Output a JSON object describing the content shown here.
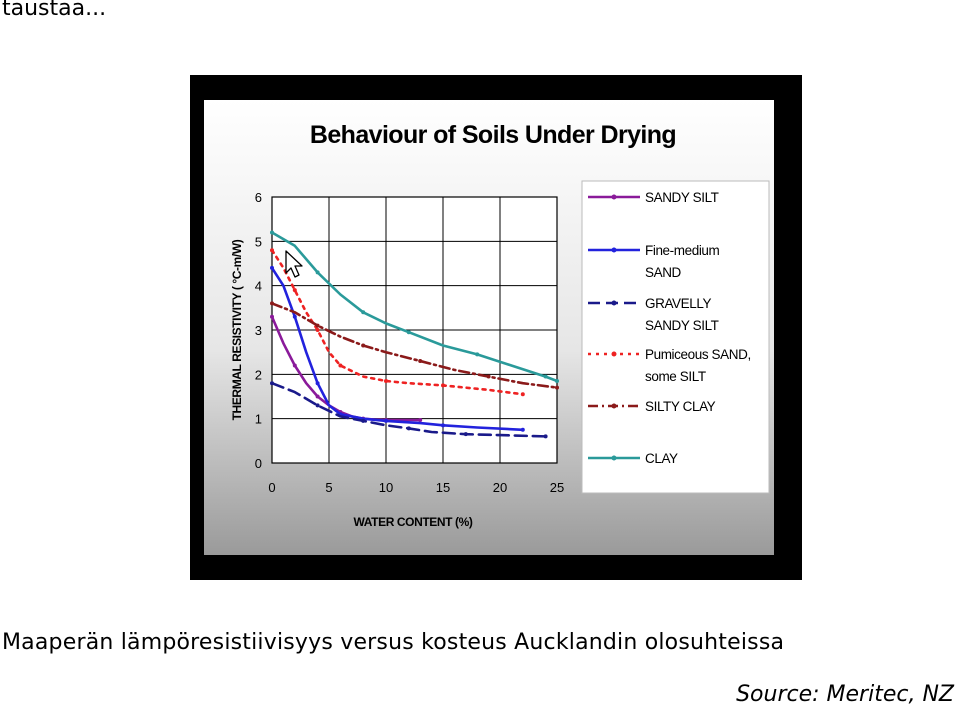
{
  "header": {
    "text": "taustaa..."
  },
  "caption": {
    "text": "Maaperän lämpöresistiivisyys versus kosteus Aucklandin olosuhteissa"
  },
  "source": {
    "text": "Source: Meritec, NZ"
  },
  "chart_data": {
    "type": "line",
    "title": "Behaviour of Soils Under Drying",
    "xlabel": "WATER CONTENT (%)",
    "ylabel": "THERMAL RESISTIVITY (  °C-m/W)",
    "xlim": [
      0,
      25
    ],
    "ylim": [
      0,
      6
    ],
    "x_ticks": [
      "0",
      "5",
      "10",
      "15",
      "20",
      "25"
    ],
    "y_ticks": [
      "0",
      "1",
      "2",
      "3",
      "4",
      "5",
      "6"
    ],
    "grid": true,
    "legend_position": "right",
    "series": [
      {
        "name": "SANDY SILT",
        "color": "#8a1a9a",
        "dash": "solid",
        "points": [
          [
            0,
            3.3
          ],
          [
            1,
            2.7
          ],
          [
            2,
            2.2
          ],
          [
            3,
            1.8
          ],
          [
            4,
            1.5
          ],
          [
            5,
            1.3
          ],
          [
            6,
            1.15
          ],
          [
            7,
            1.05
          ],
          [
            8,
            1.0
          ],
          [
            9,
            0.98
          ],
          [
            10,
            0.97
          ],
          [
            12,
            0.97
          ],
          [
            13,
            0.97
          ]
        ]
      },
      {
        "name": "Fine-medium SAND",
        "color": "#2222dd",
        "dash": "solid",
        "points": [
          [
            0,
            4.4
          ],
          [
            1,
            4.0
          ],
          [
            2,
            3.3
          ],
          [
            3,
            2.5
          ],
          [
            4,
            1.8
          ],
          [
            5,
            1.3
          ],
          [
            6,
            1.1
          ],
          [
            8,
            1.0
          ],
          [
            10,
            0.95
          ],
          [
            13,
            0.9
          ],
          [
            15,
            0.85
          ],
          [
            18,
            0.8
          ],
          [
            22,
            0.75
          ]
        ]
      },
      {
        "name": "GRAVELLY SANDY SILT",
        "color": "#1a1a8a",
        "dash": "long-dash",
        "points": [
          [
            0,
            1.8
          ],
          [
            2,
            1.6
          ],
          [
            4,
            1.3
          ],
          [
            6,
            1.05
          ],
          [
            8,
            0.95
          ],
          [
            10,
            0.85
          ],
          [
            12,
            0.78
          ],
          [
            14,
            0.7
          ],
          [
            17,
            0.65
          ],
          [
            20,
            0.63
          ],
          [
            24,
            0.6
          ]
        ]
      },
      {
        "name": "Pumiceous SAND, some SILT",
        "color": "#ee2222",
        "dash": "dotted",
        "points": [
          [
            0,
            4.8
          ],
          [
            1,
            4.4
          ],
          [
            2,
            3.9
          ],
          [
            3,
            3.4
          ],
          [
            4,
            3.0
          ],
          [
            5,
            2.5
          ],
          [
            6,
            2.2
          ],
          [
            8,
            1.95
          ],
          [
            10,
            1.85
          ],
          [
            12,
            1.8
          ],
          [
            15,
            1.75
          ],
          [
            19,
            1.65
          ],
          [
            22,
            1.55
          ]
        ]
      },
      {
        "name": "SILTY CLAY",
        "color": "#8b1a1a",
        "dash": "dash-dot",
        "points": [
          [
            0,
            3.6
          ],
          [
            2,
            3.4
          ],
          [
            4,
            3.1
          ],
          [
            6,
            2.85
          ],
          [
            8,
            2.65
          ],
          [
            10,
            2.5
          ],
          [
            13,
            2.3
          ],
          [
            16,
            2.1
          ],
          [
            19,
            1.95
          ],
          [
            22,
            1.8
          ],
          [
            25,
            1.7
          ]
        ]
      },
      {
        "name": "CLAY",
        "color": "#2a9a9a",
        "dash": "solid",
        "points": [
          [
            0,
            5.2
          ],
          [
            2,
            4.9
          ],
          [
            4,
            4.3
          ],
          [
            6,
            3.8
          ],
          [
            8,
            3.4
          ],
          [
            10,
            3.15
          ],
          [
            12,
            2.95
          ],
          [
            15,
            2.65
          ],
          [
            18,
            2.45
          ],
          [
            21,
            2.2
          ],
          [
            24,
            1.95
          ],
          [
            25,
            1.85
          ]
        ]
      }
    ]
  }
}
